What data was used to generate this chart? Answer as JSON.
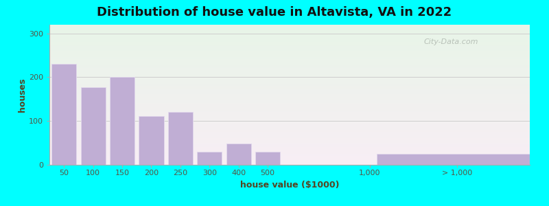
{
  "title": "Distribution of house value in Altavista, VA in 2022",
  "xlabel": "house value ($1000)",
  "ylabel": "houses",
  "background_outer": "#00FFFF",
  "bar_color": "#c0aed4",
  "yticks": [
    0,
    100,
    200,
    300
  ],
  "ylim": [
    0,
    320
  ],
  "bars": [
    {
      "label": "50",
      "value": 230
    },
    {
      "label": "100",
      "value": 178
    },
    {
      "label": "150",
      "value": 200
    },
    {
      "label": "200",
      "value": 112
    },
    {
      "label": "250",
      "value": 120
    },
    {
      "label": "300",
      "value": 30
    },
    {
      "label": "400",
      "value": 48
    },
    {
      "label": "500",
      "value": 30
    }
  ],
  "far_bar_label": "> 1,000",
  "far_bar_value": 25,
  "mid_tick_label": "1,000",
  "watermark": "City-Data.com",
  "title_fontsize": 13,
  "axis_label_fontsize": 9,
  "tick_fontsize": 8
}
